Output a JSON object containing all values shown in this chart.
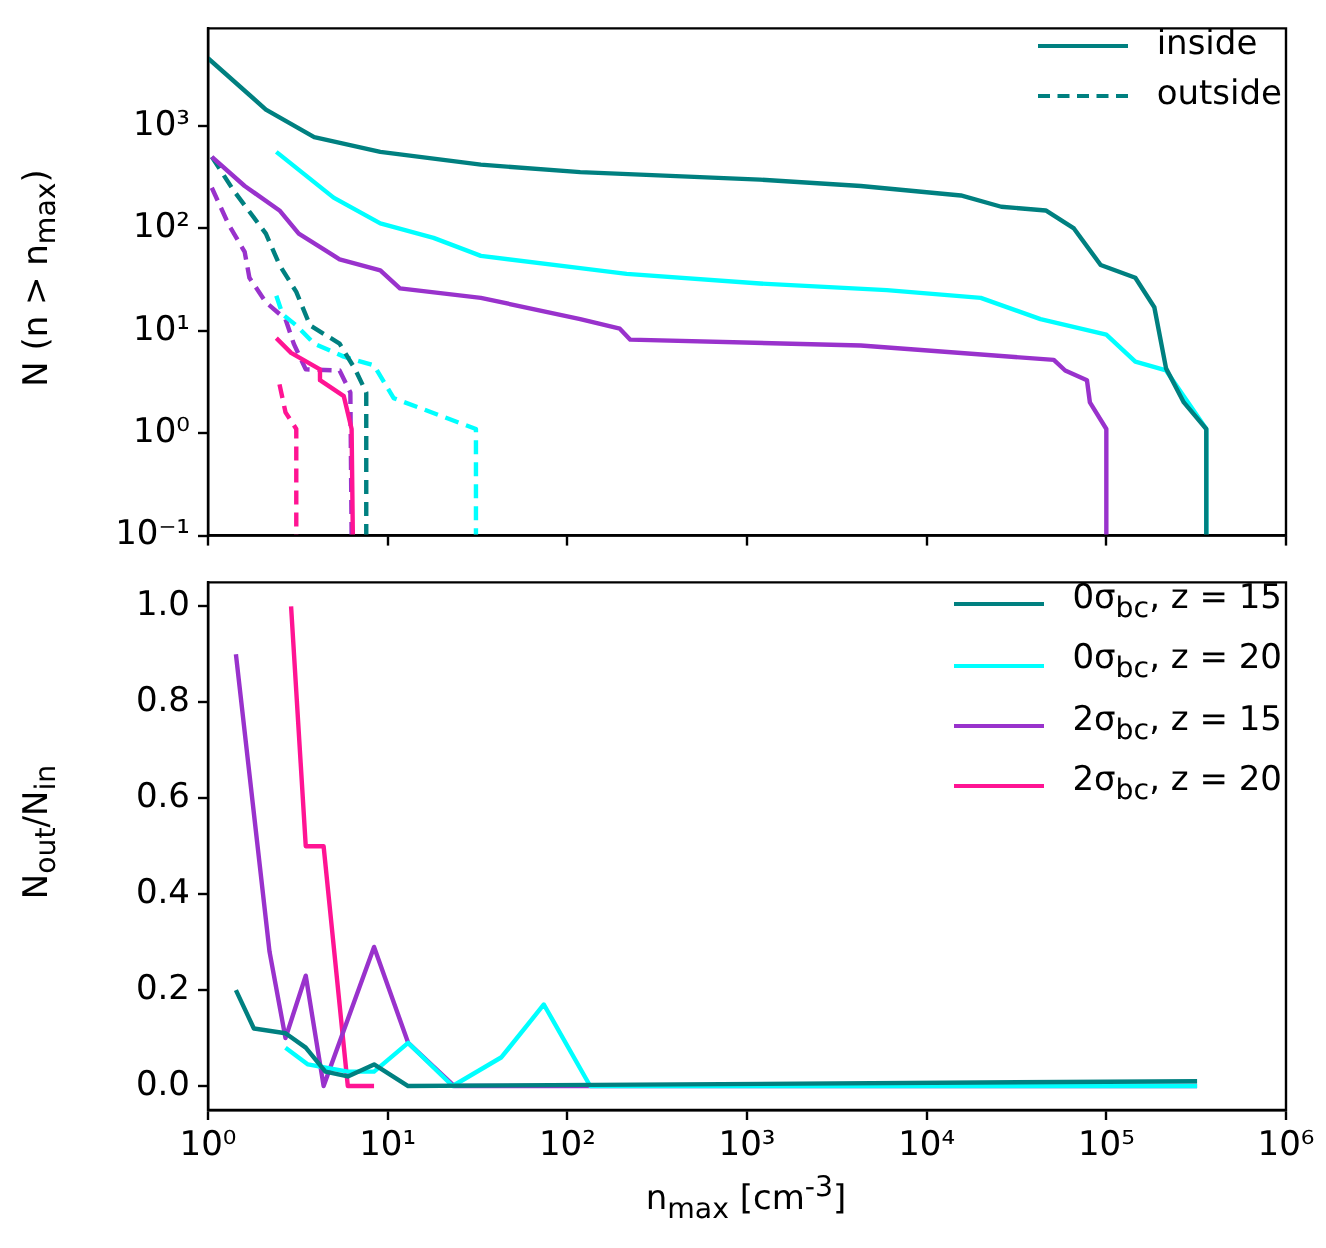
{
  "chart_data": [
    {
      "type": "line",
      "ylabel": "N (n > n$_{max}$)",
      "log": "xy",
      "legend": "top right",
      "tick_labels": "y",
      "xlim": [
        1,
        1000000
      ],
      "ylim": [
        0.1,
        9000
      ],
      "xticks": [
        {
          "value": 1,
          "label": null
        },
        {
          "value": 10,
          "label": null
        },
        {
          "value": 100,
          "label": null
        },
        {
          "value": 1000,
          "label": null
        },
        {
          "value": 10000,
          "label": null
        },
        {
          "value": 100000,
          "label": null
        },
        {
          "value": 1000000,
          "label": null
        }
      ],
      "yticks": [
        {
          "value": 0.1,
          "label": "10⁻¹"
        },
        {
          "value": 1,
          "label": "10⁰"
        },
        {
          "value": 10,
          "label": "10¹"
        },
        {
          "value": 100,
          "label": "10²"
        },
        {
          "value": 1000,
          "label": "10³"
        }
      ],
      "series": [
        {
          "name": "inside",
          "color": "#008080",
          "line_style": "solid",
          "x": [
            1,
            2.1,
            3.9,
            9.1,
            33,
            118,
            1180,
            4300,
            15500,
            26000,
            46000,
            66000,
            93000,
            145000,
            185000,
            215000,
            270000,
            360000,
            360000
          ],
          "values": [
            4600,
            1450,
            780,
            560,
            420,
            355,
            300,
            260,
            210,
            163,
            150,
            100,
            44,
            33,
            17,
            4.3,
            2.0,
            1.1,
            0.1
          ]
        },
        {
          "color": "#00ffff",
          "line_style": "solid",
          "x": [
            2.4,
            5,
            9.1,
            18,
            33,
            118,
            214,
            1180,
            6000,
            20000,
            43000,
            100000,
            145000,
            215000,
            360000,
            360000
          ],
          "values": [
            560,
            200,
            112,
            81,
            54,
            41,
            36,
            29,
            25,
            21,
            13,
            9.2,
            5,
            4.1,
            1.1,
            0.1
          ]
        },
        {
          "color": "#9932cc",
          "line_style": "solid",
          "x": [
            1.05,
            1.6,
            2.5,
            3.2,
            5.4,
            9.1,
            11.7,
            33,
            118,
            196,
            224,
            4300,
            51000,
            59000,
            78000,
            81000,
            100000,
            100000
          ],
          "values": [
            500,
            260,
            150,
            89,
            50,
            39,
            26,
            21,
            13,
            10.5,
            8.2,
            7.2,
            5.2,
            4.1,
            3.3,
            2,
            1.1,
            0.1
          ]
        },
        {
          "color": "#ff1493",
          "line_style": "solid",
          "x": [
            2.4,
            2.9,
            4.2,
            4.2,
            5.7,
            6.3,
            6.4
          ],
          "values": [
            8.5,
            6.1,
            4.2,
            3.3,
            2.3,
            1.1,
            0.1
          ]
        },
        {
          "name": "outside",
          "color": "#008080",
          "line_style": "dashed",
          "x": [
            1.05,
            1.4,
            2.1,
            2.5,
            3.1,
            3.7,
            5.4,
            6.6,
            7.6,
            7.6
          ],
          "values": [
            500,
            230,
            89,
            44,
            24,
            11.3,
            7.5,
            4.2,
            2.5,
            0.1
          ]
        },
        {
          "color": "#00ffff",
          "line_style": "dashed",
          "x": [
            2.4,
            2.6,
            3.1,
            3.9,
            5.7,
            8.4,
            10.8,
            31,
            31
          ],
          "values": [
            22,
            14.5,
            11.3,
            7.5,
            5.6,
            4.6,
            2.2,
            1.1,
            0.1
          ]
        },
        {
          "color": "#9932cc",
          "line_style": "dashed",
          "x": [
            1.05,
            1.3,
            1.6,
            1.7,
            2.1,
            2.7,
            3,
            3.5,
            5.4,
            6.2,
            6.3
          ],
          "values": [
            250,
            110,
            59,
            33,
            19,
            13,
            7.5,
            4.2,
            4.1,
            2.5,
            0.1
          ]
        },
        {
          "color": "#ff1493",
          "line_style": "dashed",
          "x": [
            2.5,
            2.7,
            3.1,
            3.1
          ],
          "values": [
            3,
            1.6,
            1.1,
            0.1
          ]
        }
      ]
    },
    {
      "type": "line",
      "xlabel": "n$_{max}$ [cm$^{-3}$]",
      "ylabel": "N$_{out}$/N$_{in}$",
      "log": "x",
      "legend": "top right",
      "xlim": [
        1,
        1000000
      ],
      "ylim": [
        -0.05,
        1.05
      ],
      "xticks": [
        {
          "value": 1,
          "label": "10⁰"
        },
        {
          "value": 10,
          "label": "10¹"
        },
        {
          "value": 100,
          "label": "10²"
        },
        {
          "value": 1000,
          "label": "10³"
        },
        {
          "value": 10000,
          "label": "10⁴"
        },
        {
          "value": 100000,
          "label": "10⁵"
        },
        {
          "value": 1000000,
          "label": "10⁶"
        }
      ],
      "yticks": [
        {
          "value": 0,
          "label": "0.0"
        },
        {
          "value": 0.2,
          "label": "0.2"
        },
        {
          "value": 0.4,
          "label": "0.4"
        },
        {
          "value": 0.6,
          "label": "0.6"
        },
        {
          "value": 0.8,
          "label": "0.8"
        },
        {
          "value": 1,
          "label": "1.0"
        }
      ],
      "series": [
        {
          "name": "0σ$_{bc}$, z = 15",
          "color": "#008080",
          "x": [
            1.43,
            1.8,
            2.7,
            3.5,
            4.5,
            6,
            8.4,
            13,
            320000
          ],
          "values": [
            0.2,
            0.12,
            0.11,
            0.08,
            0.03,
            0.02,
            0.045,
            0,
            0.01
          ]
        },
        {
          "name": "0σ$_{bc}$, z = 20",
          "color": "#00ffff",
          "x": [
            2.7,
            3.6,
            6,
            8.4,
            13,
            23,
            43,
            74,
            134,
            320000
          ],
          "values": [
            0.08,
            0.045,
            0.03,
            0.03,
            0.09,
            0,
            0.06,
            0.17,
            0,
            0
          ]
        },
        {
          "name": "2σ$_{bc}$, z = 15",
          "color": "#9932cc",
          "x": [
            1.43,
            2.2,
            2.7,
            3.5,
            4.4,
            8.4,
            13,
            23.5,
            320000
          ],
          "values": [
            0.9,
            0.28,
            0.1,
            0.23,
            0,
            0.29,
            0.09,
            0,
            0
          ]
        },
        {
          "name": "2σ$_{bc}$, z = 20",
          "color": "#ff1493",
          "x": [
            2.9,
            3.5,
            4.4,
            6,
            8.4
          ],
          "values": [
            1,
            0.5,
            0.5,
            0,
            0
          ]
        }
      ]
    }
  ]
}
